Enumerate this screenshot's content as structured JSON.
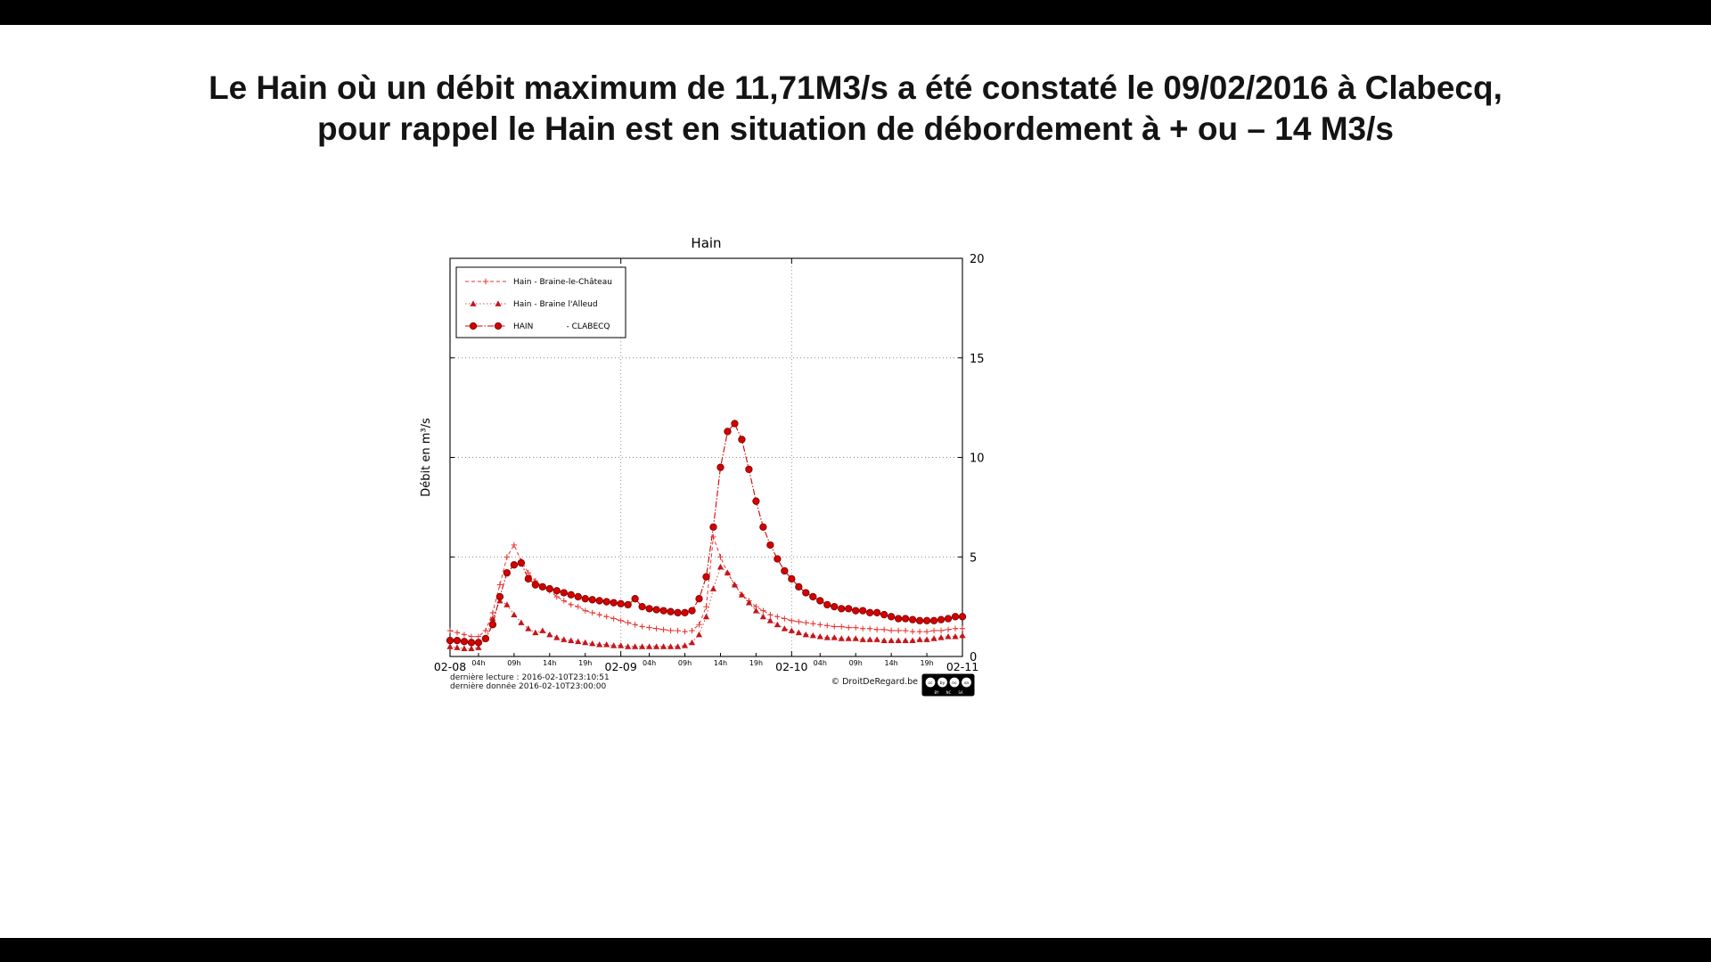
{
  "page": {
    "title_line1": "Le Hain où un débit maximum de 11,71M3/s a été constaté le 09/02/2016 à Clabecq,",
    "title_line2": "pour rappel le Hain est en situation de débordement à + ou – 14 M3/s"
  },
  "chart_data": {
    "type": "line",
    "title": "Hain",
    "ylabel": "Débit en m³/s",
    "ylim": [
      0,
      20
    ],
    "yticks": [
      0,
      5,
      10,
      15,
      20
    ],
    "x_hours_range": [
      0,
      72
    ],
    "grid": {
      "h_dotted_at": [
        5,
        10,
        15
      ],
      "v_dotted_at_hours": [
        24,
        48
      ]
    },
    "legend_position": "upper-left",
    "x_major": [
      {
        "hour": 0,
        "label": "02-08"
      },
      {
        "hour": 24,
        "label": "02-09"
      },
      {
        "hour": 48,
        "label": "02-10"
      },
      {
        "hour": 72,
        "label": "02-11"
      }
    ],
    "x_minor": [
      {
        "hour": 4,
        "label": "04h"
      },
      {
        "hour": 9,
        "label": "09h"
      },
      {
        "hour": 14,
        "label": "14h"
      },
      {
        "hour": 19,
        "label": "19h"
      },
      {
        "hour": 28,
        "label": "04h"
      },
      {
        "hour": 33,
        "label": "09h"
      },
      {
        "hour": 38,
        "label": "14h"
      },
      {
        "hour": 43,
        "label": "19h"
      },
      {
        "hour": 52,
        "label": "04h"
      },
      {
        "hour": 57,
        "label": "09h"
      },
      {
        "hour": 62,
        "label": "14h"
      },
      {
        "hour": 67,
        "label": "19h"
      }
    ],
    "series": [
      {
        "id": "braine-le-chateau",
        "name": "Hain - Braine-le-Château",
        "marker": "plus",
        "color": "#e8312d",
        "dash": "4,3",
        "width": 1,
        "values": [
          1.3,
          1.2,
          1.1,
          1.0,
          1.0,
          1.3,
          2.2,
          3.6,
          5.0,
          5.6,
          4.8,
          4.2,
          3.8,
          3.5,
          3.3,
          3.0,
          2.8,
          2.6,
          2.5,
          2.3,
          2.2,
          2.1,
          2.0,
          1.9,
          1.8,
          1.7,
          1.6,
          1.5,
          1.45,
          1.4,
          1.35,
          1.3,
          1.3,
          1.25,
          1.3,
          1.6,
          2.5,
          6.0,
          5.0,
          4.2,
          3.6,
          3.1,
          2.8,
          2.5,
          2.3,
          2.1,
          2.0,
          1.9,
          1.8,
          1.75,
          1.7,
          1.65,
          1.6,
          1.55,
          1.5,
          1.5,
          1.45,
          1.45,
          1.4,
          1.4,
          1.35,
          1.35,
          1.3,
          1.3,
          1.3,
          1.25,
          1.25,
          1.25,
          1.3,
          1.3,
          1.35,
          1.4,
          1.4
        ]
      },
      {
        "id": "braine-l-alleud",
        "name": "Hain - Braine l'Alleud",
        "marker": "triangle",
        "color": "#c4161c",
        "dash": "1.5,2.5",
        "width": 0.8,
        "values": [
          0.5,
          0.45,
          0.4,
          0.4,
          0.45,
          0.9,
          1.9,
          2.8,
          2.6,
          2.1,
          1.7,
          1.4,
          1.2,
          1.3,
          1.1,
          0.95,
          0.85,
          0.8,
          0.75,
          0.7,
          0.65,
          0.6,
          0.6,
          0.55,
          0.55,
          0.5,
          0.5,
          0.5,
          0.5,
          0.5,
          0.5,
          0.5,
          0.5,
          0.55,
          0.7,
          1.1,
          2.0,
          3.4,
          4.5,
          4.2,
          3.6,
          3.1,
          2.7,
          2.3,
          2.0,
          1.8,
          1.6,
          1.4,
          1.3,
          1.2,
          1.1,
          1.05,
          1.0,
          0.95,
          0.95,
          0.9,
          0.9,
          0.9,
          0.85,
          0.85,
          0.85,
          0.8,
          0.8,
          0.8,
          0.8,
          0.8,
          0.85,
          0.85,
          0.9,
          0.95,
          1.0,
          1.0,
          1.05
        ]
      },
      {
        "id": "clabecq",
        "name": "HAIN             - CLABECQ",
        "marker": "circle",
        "color": "#d40000",
        "dash": "7,2,1.5,2",
        "width": 1.1,
        "values": [
          0.8,
          0.8,
          0.75,
          0.7,
          0.7,
          0.9,
          1.6,
          3.0,
          4.2,
          4.6,
          4.7,
          3.9,
          3.6,
          3.5,
          3.4,
          3.3,
          3.2,
          3.1,
          3.0,
          2.9,
          2.85,
          2.8,
          2.75,
          2.7,
          2.65,
          2.6,
          2.9,
          2.5,
          2.4,
          2.35,
          2.3,
          2.25,
          2.2,
          2.2,
          2.3,
          2.9,
          4.0,
          6.5,
          9.5,
          11.3,
          11.7,
          10.9,
          9.4,
          7.8,
          6.5,
          5.6,
          4.9,
          4.3,
          3.9,
          3.5,
          3.2,
          3.0,
          2.8,
          2.6,
          2.5,
          2.4,
          2.4,
          2.3,
          2.3,
          2.2,
          2.2,
          2.1,
          2.0,
          1.9,
          1.9,
          1.85,
          1.8,
          1.8,
          1.8,
          1.85,
          1.9,
          2.0,
          2.0
        ]
      }
    ],
    "footer": {
      "line1": "dernière lecture : 2016-02-10T23:10:51",
      "line2": "dernière donnée  2016-02-10T23:00:00",
      "copyright": "© DroitDeRegard.be",
      "license": "CC BY NC SA",
      "license_parts": [
        "cc",
        "BY",
        "NC",
        "SA"
      ]
    }
  }
}
